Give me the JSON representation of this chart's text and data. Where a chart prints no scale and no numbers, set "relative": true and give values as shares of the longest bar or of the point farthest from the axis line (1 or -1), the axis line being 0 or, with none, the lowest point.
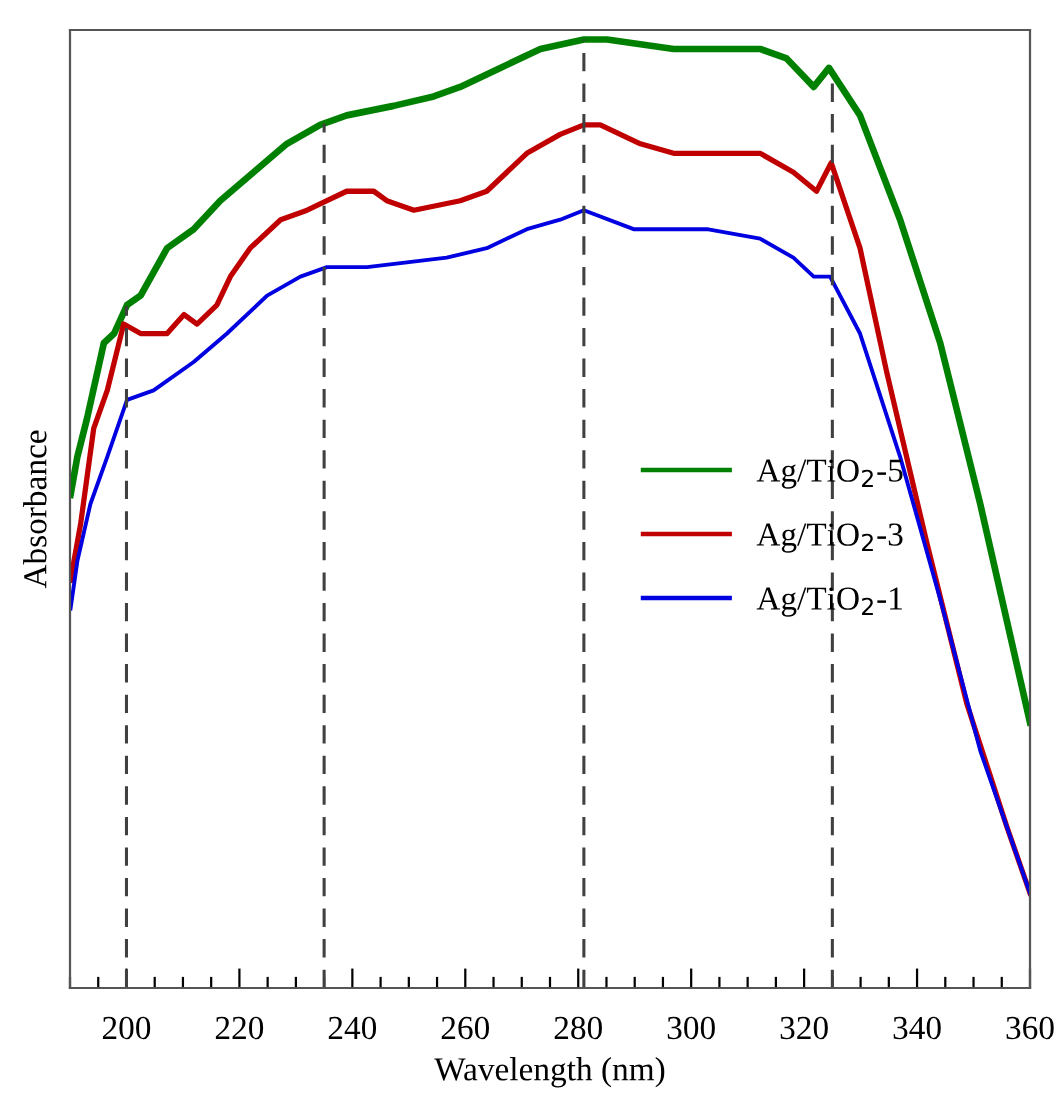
{
  "chart_data": {
    "type": "line",
    "relative": true,
    "xlabel": "Wavelength (nm)",
    "ylabel": "Absorbance",
    "xlim": [
      190,
      360
    ],
    "xticks": [
      {
        "value": 190,
        "label": null
      },
      {
        "value": 195,
        "label": null
      },
      200,
      {
        "value": 205,
        "label": null
      },
      {
        "value": 210,
        "label": null
      },
      {
        "value": 215,
        "label": null
      },
      220,
      {
        "value": 225,
        "label": null
      },
      {
        "value": 230,
        "label": null
      },
      {
        "value": 235,
        "label": null
      },
      240,
      {
        "value": 245,
        "label": null
      },
      {
        "value": 250,
        "label": null
      },
      {
        "value": 255,
        "label": null
      },
      260,
      {
        "value": 265,
        "label": null
      },
      {
        "value": 270,
        "label": null
      },
      {
        "value": 275,
        "label": null
      },
      280,
      {
        "value": 285,
        "label": null
      },
      {
        "value": 290,
        "label": null
      },
      {
        "value": 295,
        "label": null
      },
      300,
      {
        "value": 305,
        "label": null
      },
      {
        "value": 310,
        "label": null
      },
      {
        "value": 315,
        "label": null
      },
      320,
      {
        "value": 325,
        "label": null
      },
      {
        "value": 330,
        "label": null
      },
      {
        "value": 335,
        "label": null
      },
      340,
      {
        "value": 345,
        "label": null
      },
      {
        "value": 350,
        "label": null
      },
      {
        "value": 355,
        "label": null
      },
      360
    ],
    "tick_labels": "x",
    "legend": "center right",
    "grid": false,
    "marker": "none",
    "line_style": "solid",
    "series": [
      {
        "name": "Ag/TiO$_{2}$-5",
        "color": "#008000",
        "x": [
          190.1,
          191.3,
          193.0,
          196.0,
          197.8,
          200.1,
          202.5,
          207.2,
          211.9,
          216.6,
          222.5,
          228.4,
          234.3,
          239.0,
          247.3,
          254.4,
          259.1,
          266.2,
          273.3,
          281.0,
          285.1,
          296.9,
          312.2,
          316.9,
          321.7,
          324.4,
          329.9,
          337.0,
          344.1,
          351.2,
          360
        ],
        "values": [
          0.52,
          0.56,
          0.6,
          0.68,
          0.69,
          0.72,
          0.73,
          0.78,
          0.8,
          0.83,
          0.86,
          0.89,
          0.91,
          0.92,
          0.93,
          0.94,
          0.95,
          0.97,
          0.99,
          1.0,
          1.0,
          0.99,
          0.99,
          0.98,
          0.95,
          0.97,
          0.92,
          0.81,
          0.68,
          0.51,
          0.28
        ]
      },
      {
        "name": "Ag/TiO$_{2}$-3",
        "color": "#c00000",
        "x": [
          190.1,
          191.9,
          194.2,
          196.6,
          199.5,
          202.5,
          207.2,
          210.2,
          212.5,
          216.0,
          218.4,
          221.9,
          227.3,
          232.0,
          235.5,
          239.0,
          243.8,
          246.1,
          250.9,
          259.1,
          263.8,
          270.9,
          276.8,
          281.0,
          283.9,
          291.0,
          296.9,
          312.2,
          318.1,
          322.2,
          324.8,
          329.9,
          334.6,
          341.7,
          348.8,
          355.9,
          360
        ],
        "values": [
          0.43,
          0.49,
          0.59,
          0.63,
          0.7,
          0.69,
          0.69,
          0.71,
          0.7,
          0.72,
          0.75,
          0.78,
          0.81,
          0.82,
          0.83,
          0.84,
          0.84,
          0.83,
          0.82,
          0.83,
          0.84,
          0.88,
          0.9,
          0.91,
          0.91,
          0.89,
          0.88,
          0.88,
          0.86,
          0.84,
          0.87,
          0.78,
          0.65,
          0.47,
          0.3,
          0.17,
          0.1
        ]
      },
      {
        "name": "Ag/TiO$_{2}$-1",
        "color": "#0000e0",
        "x": [
          190.1,
          191.3,
          193.6,
          196.6,
          200.1,
          204.8,
          211.9,
          217.8,
          224.9,
          230.8,
          235.5,
          242.6,
          256.7,
          263.8,
          270.9,
          276.8,
          281.0,
          289.8,
          302.8,
          312.2,
          318.1,
          321.7,
          324.6,
          329.9,
          337.0,
          344.1,
          351.2,
          360
        ],
        "values": [
          0.4,
          0.45,
          0.51,
          0.56,
          0.62,
          0.63,
          0.66,
          0.69,
          0.73,
          0.75,
          0.76,
          0.76,
          0.77,
          0.78,
          0.8,
          0.81,
          0.82,
          0.8,
          0.8,
          0.79,
          0.77,
          0.75,
          0.75,
          0.69,
          0.56,
          0.41,
          0.25,
          0.1
        ]
      }
    ],
    "ref_lines": [
      {
        "axis": "x",
        "value": 200,
        "color": "#404040",
        "line_style": "dashed"
      },
      {
        "axis": "x",
        "value": 235,
        "color": "#404040",
        "line_style": "dashed"
      },
      {
        "axis": "x",
        "value": 281,
        "color": "#404040",
        "line_style": "dashed"
      },
      {
        "axis": "x",
        "value": 325,
        "color": "#404040",
        "line_style": "dashed"
      }
    ]
  }
}
